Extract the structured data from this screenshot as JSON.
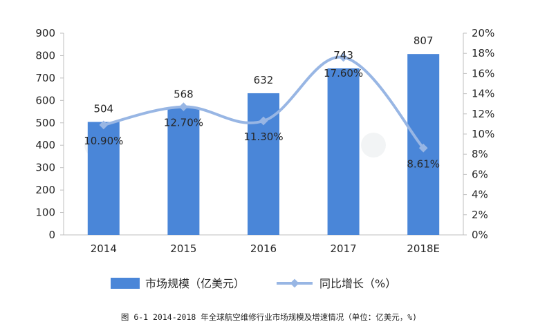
{
  "caption": "图 6-1 2014-2018 年全球航空维修行业市场规模及增速情况（单位：亿美元，%)",
  "chart_data": {
    "type": "bar",
    "categories": [
      "2014",
      "2015",
      "2016",
      "2017",
      "2018E"
    ],
    "series": [
      {
        "name": "市场规模（亿美元）",
        "type": "bar",
        "axis": "left",
        "values": [
          504,
          568,
          632,
          743,
          807
        ],
        "labels": [
          "504",
          "568",
          "632",
          "743",
          "807"
        ],
        "color": "#4A86D8"
      },
      {
        "name": "同比增长（%）",
        "type": "line",
        "axis": "right",
        "values": [
          10.9,
          12.7,
          11.3,
          17.6,
          8.61
        ],
        "labels": [
          "10.90%",
          "12.70%",
          "11.30%",
          "17.60%",
          "8.61%"
        ],
        "color": "#98B6E4"
      }
    ],
    "y_left": {
      "min": 0,
      "max": 900,
      "step": 100,
      "ticks": [
        "0",
        "100",
        "200",
        "300",
        "400",
        "500",
        "600",
        "700",
        "800",
        "900"
      ]
    },
    "y_right": {
      "min": 0,
      "max": 20,
      "step": 2,
      "ticks": [
        "0%",
        "2%",
        "4%",
        "6%",
        "8%",
        "10%",
        "12%",
        "14%",
        "16%",
        "18%",
        "20%"
      ]
    },
    "legend_position": "bottom",
    "grid": false
  }
}
